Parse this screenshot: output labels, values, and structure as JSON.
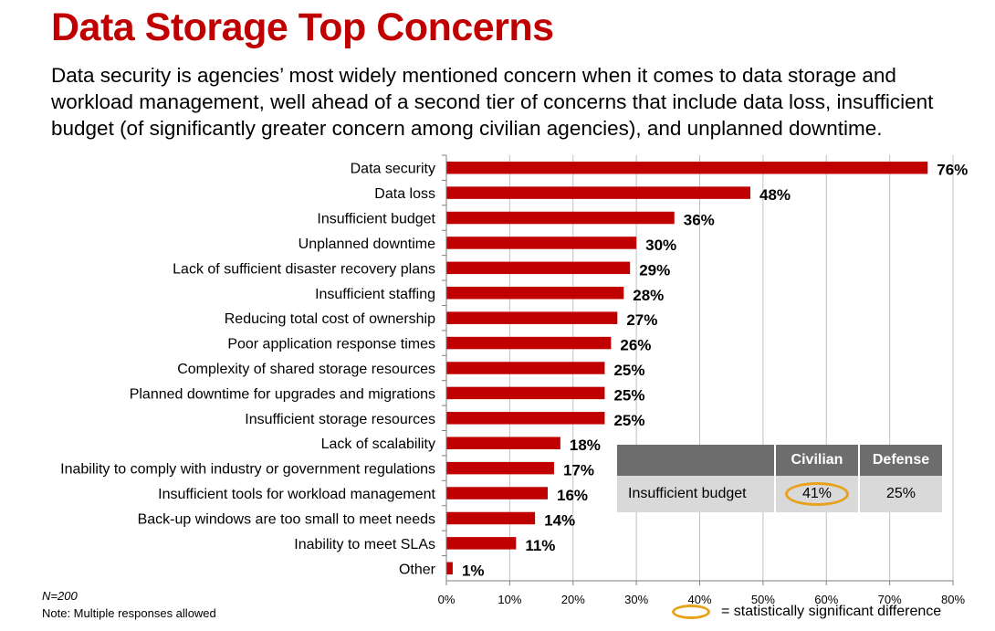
{
  "title": "Data Storage Top Concerns",
  "subtitle": "Data security is agencies’ most widely mentioned concern when it comes to data storage and workload management, well ahead of a second tier of concerns that include data loss, insufficient budget (of significantly greater concern among civilian agencies), and unplanned downtime.",
  "notes": {
    "n": "N=200",
    "multiple": "Note: Multiple responses allowed"
  },
  "legend": {
    "text": "= statistically significant difference",
    "highlight_color": "#e8a21a"
  },
  "inset_table": {
    "columns": [
      "",
      "Civilian",
      "Defense"
    ],
    "row_label": "Insufficient budget",
    "civilian": "41%",
    "defense": "25%",
    "civilian_significant": true
  },
  "colors": {
    "bar": "#c00000",
    "title": "#c00000",
    "grid": "#bfbfbf"
  },
  "chart_data": {
    "type": "bar",
    "orientation": "horizontal",
    "categories": [
      "Data security",
      "Data loss",
      "Insufficient budget",
      "Unplanned downtime",
      "Lack of sufficient disaster recovery plans",
      "Insufficient staffing",
      "Reducing total cost of ownership",
      "Poor application response times",
      "Complexity of shared storage resources",
      "Planned downtime for upgrades and migrations",
      "Insufficient storage resources",
      "Lack of scalability",
      "Inability to comply with industry or government regulations",
      "Insufficient tools for workload management",
      "Back-up windows are too small to meet needs",
      "Inability to meet SLAs",
      "Other"
    ],
    "values": [
      76,
      48,
      36,
      30,
      29,
      28,
      27,
      26,
      25,
      25,
      25,
      18,
      17,
      16,
      14,
      11,
      1
    ],
    "value_labels": [
      "76%",
      "48%",
      "36%",
      "30%",
      "29%",
      "28%",
      "27%",
      "26%",
      "25%",
      "25%",
      "25%",
      "18%",
      "17%",
      "16%",
      "14%",
      "11%",
      "1%"
    ],
    "xticks": [
      "0%",
      "10%",
      "20%",
      "30%",
      "40%",
      "50%",
      "60%",
      "70%",
      "80%"
    ],
    "xlim": [
      0,
      80
    ],
    "grid": true
  }
}
